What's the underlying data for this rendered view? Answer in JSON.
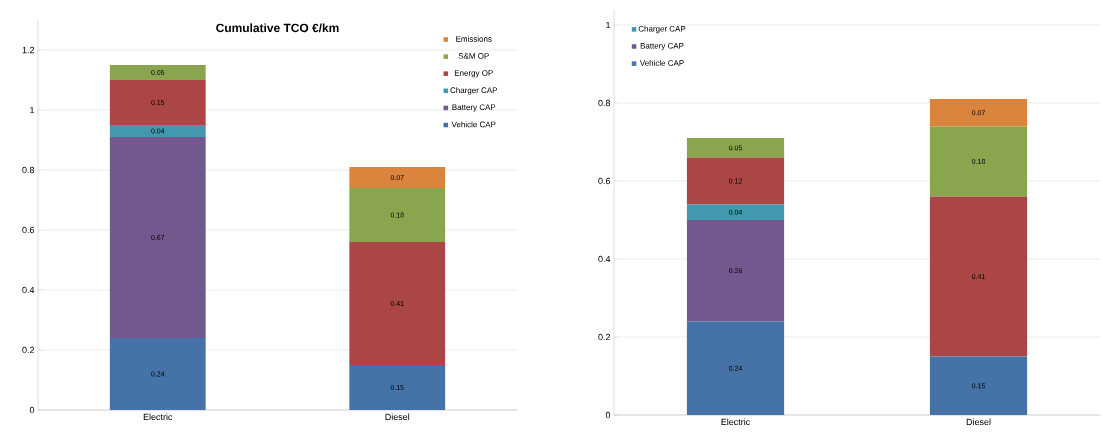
{
  "chart_data": [
    {
      "type": "bar",
      "stacked": true,
      "title": "Cumulative TCO €/km",
      "categories": [
        "Electric",
        "Diesel"
      ],
      "ylim": [
        0,
        1.3
      ],
      "yticks": [
        0,
        0.2,
        0.4,
        0.6,
        0.8,
        1,
        1.2
      ],
      "grid": "y",
      "legend": "top right",
      "data_labels": true,
      "series": [
        {
          "name": "Vehicle CAP",
          "color": "#4572a7",
          "values": [
            0.24,
            0.15
          ]
        },
        {
          "name": "Battery CAP",
          "color": "#71588f",
          "values": [
            0.67,
            null
          ]
        },
        {
          "name": "Charger CAP",
          "color": "#4198af",
          "values": [
            0.04,
            null
          ]
        },
        {
          "name": "Energy OP",
          "color": "#aa4643",
          "values": [
            0.15,
            0.41
          ]
        },
        {
          "name": "S&M OP",
          "color": "#89a54e",
          "values": [
            0.05,
            0.18
          ]
        },
        {
          "name": "Emissions",
          "color": "#db843d",
          "values": [
            null,
            0.07
          ]
        }
      ]
    },
    {
      "type": "bar",
      "stacked": true,
      "categories": [
        "Electric",
        "Diesel"
      ],
      "ylim": [
        0,
        1.04
      ],
      "yticks": [
        0,
        0.2,
        0.4,
        0.6,
        0.8,
        1
      ],
      "grid": "y",
      "legend": "top left",
      "data_labels": true,
      "series": [
        {
          "name": "Vehicle CAP",
          "color": "#4572a7",
          "values": [
            0.24,
            0.15
          ]
        },
        {
          "name": "Battery CAP",
          "color": "#71588f",
          "values": [
            0.26,
            null
          ]
        },
        {
          "name": "Charger CAP",
          "color": "#4198af",
          "values": [
            0.04,
            null
          ]
        },
        {
          "color": "#aa4643",
          "values": [
            0.12,
            0.41
          ]
        },
        {
          "color": "#89a54e",
          "values": [
            0.05,
            0.18
          ]
        },
        {
          "color": "#db843d",
          "values": [
            null,
            0.07
          ]
        }
      ]
    }
  ]
}
